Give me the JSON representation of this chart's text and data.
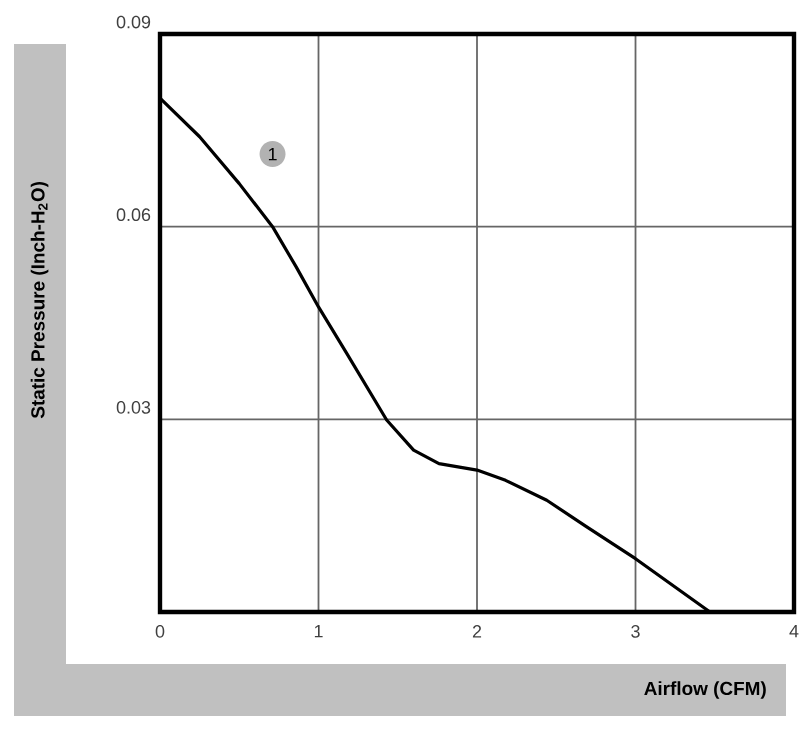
{
  "chart_data": {
    "type": "line",
    "xlabel": "Airflow (CFM)",
    "ylabel": "Static Pressure (Inch-H$_{2}$O)",
    "xlim": [
      0,
      4
    ],
    "ylim": [
      0,
      0.09
    ],
    "xticks": [
      0,
      1,
      2,
      3,
      4
    ],
    "yticks": [
      {
        "value": 0,
        "label": null
      },
      {
        "value": 0.03,
        "label": "0.03"
      },
      {
        "value": 0.06,
        "label": "0.06"
      },
      {
        "value": 0.09,
        "label": "0.09"
      }
    ],
    "grid": true,
    "series": [
      {
        "color": "#000000",
        "x": [
          0,
          0.25,
          0.5,
          0.71,
          0.86,
          1.0,
          1.18,
          1.43,
          1.6,
          1.76,
          2.0,
          2.18,
          2.44,
          2.69,
          3.0,
          3.47
        ],
        "values": [
          0.08,
          0.074,
          0.0667,
          0.06,
          0.0537,
          0.0475,
          0.0402,
          0.0299,
          0.0252,
          0.0231,
          0.0221,
          0.0205,
          0.0174,
          0.0133,
          0.0083,
          0.0
        ]
      }
    ],
    "annotations": [
      {
        "text": "1",
        "x": 0.71,
        "y": 0.0713
      }
    ]
  }
}
